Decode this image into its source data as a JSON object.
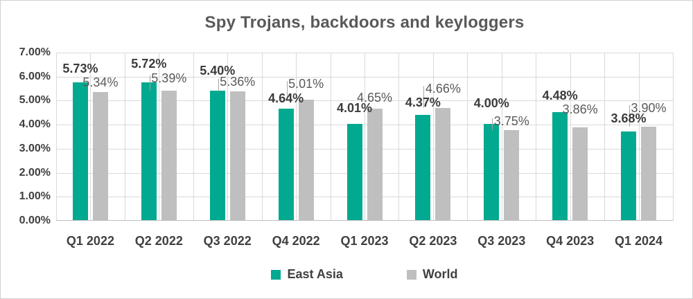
{
  "title": "Spy Trojans, backdoors and keyloggers",
  "colors": {
    "east_asia": "#00A98F",
    "world": "#BFBFBF",
    "gridline": "#D9D9D9",
    "axis_line": "#BFBFBF",
    "title_text": "#595959",
    "axis_text": "#404040",
    "ea_label_text": "#3B3B3B",
    "world_label_text": "#595959"
  },
  "chart_data": {
    "type": "bar",
    "title": "Spy Trojans, backdoors and keyloggers",
    "categories": [
      "Q1 2022",
      "Q2 2022",
      "Q3 2022",
      "Q4 2022",
      "Q1 2023",
      "Q2 2023",
      "Q3 2023",
      "Q4 2023",
      "Q1 2024"
    ],
    "series": [
      {
        "name": "East Asia",
        "color": "#00A98F",
        "values": [
          5.73,
          5.72,
          5.4,
          4.64,
          4.01,
          4.37,
          4.0,
          4.48,
          3.68
        ],
        "labels": [
          "5.73%",
          "5.72%",
          "5.40%",
          "4.64%",
          "4.01%",
          "4.37%",
          "4.00%",
          "4.48%",
          "3.68%"
        ]
      },
      {
        "name": "World",
        "color": "#BFBFBF",
        "values": [
          5.34,
          5.39,
          5.36,
          5.01,
          4.65,
          4.66,
          3.75,
          3.86,
          3.9
        ],
        "labels": [
          "5.34%",
          "5.39%",
          "5.36%",
          "5.01%",
          "4.65%",
          "4.66%",
          "3.75%",
          "3.86%",
          "3.90%"
        ]
      }
    ],
    "xlabel": "",
    "ylabel": "",
    "ylim": [
      0,
      7
    ],
    "y_ticks": [
      "7.00%",
      "6.00%",
      "5.00%",
      "4.00%",
      "3.00%",
      "2.00%",
      "1.00%",
      "0.00%"
    ],
    "grid": "horizontal majors every 1%, vertical lines every half category",
    "legend_position": "bottom",
    "label_layout": {
      "ea_label_dy": [
        11,
        18,
        20,
        6,
        14,
        9,
        21,
        15,
        10
      ],
      "world_label_dy": [
        5,
        9,
        5,
        14,
        7,
        19,
        4,
        17,
        18
      ],
      "world_label_leader": [
        false,
        true,
        true,
        true,
        false,
        true,
        true,
        false,
        true
      ]
    }
  },
  "legend": {
    "items": [
      {
        "label": "East Asia",
        "color": "#00A98F"
      },
      {
        "label": "World",
        "color": "#BFBFBF"
      }
    ]
  }
}
